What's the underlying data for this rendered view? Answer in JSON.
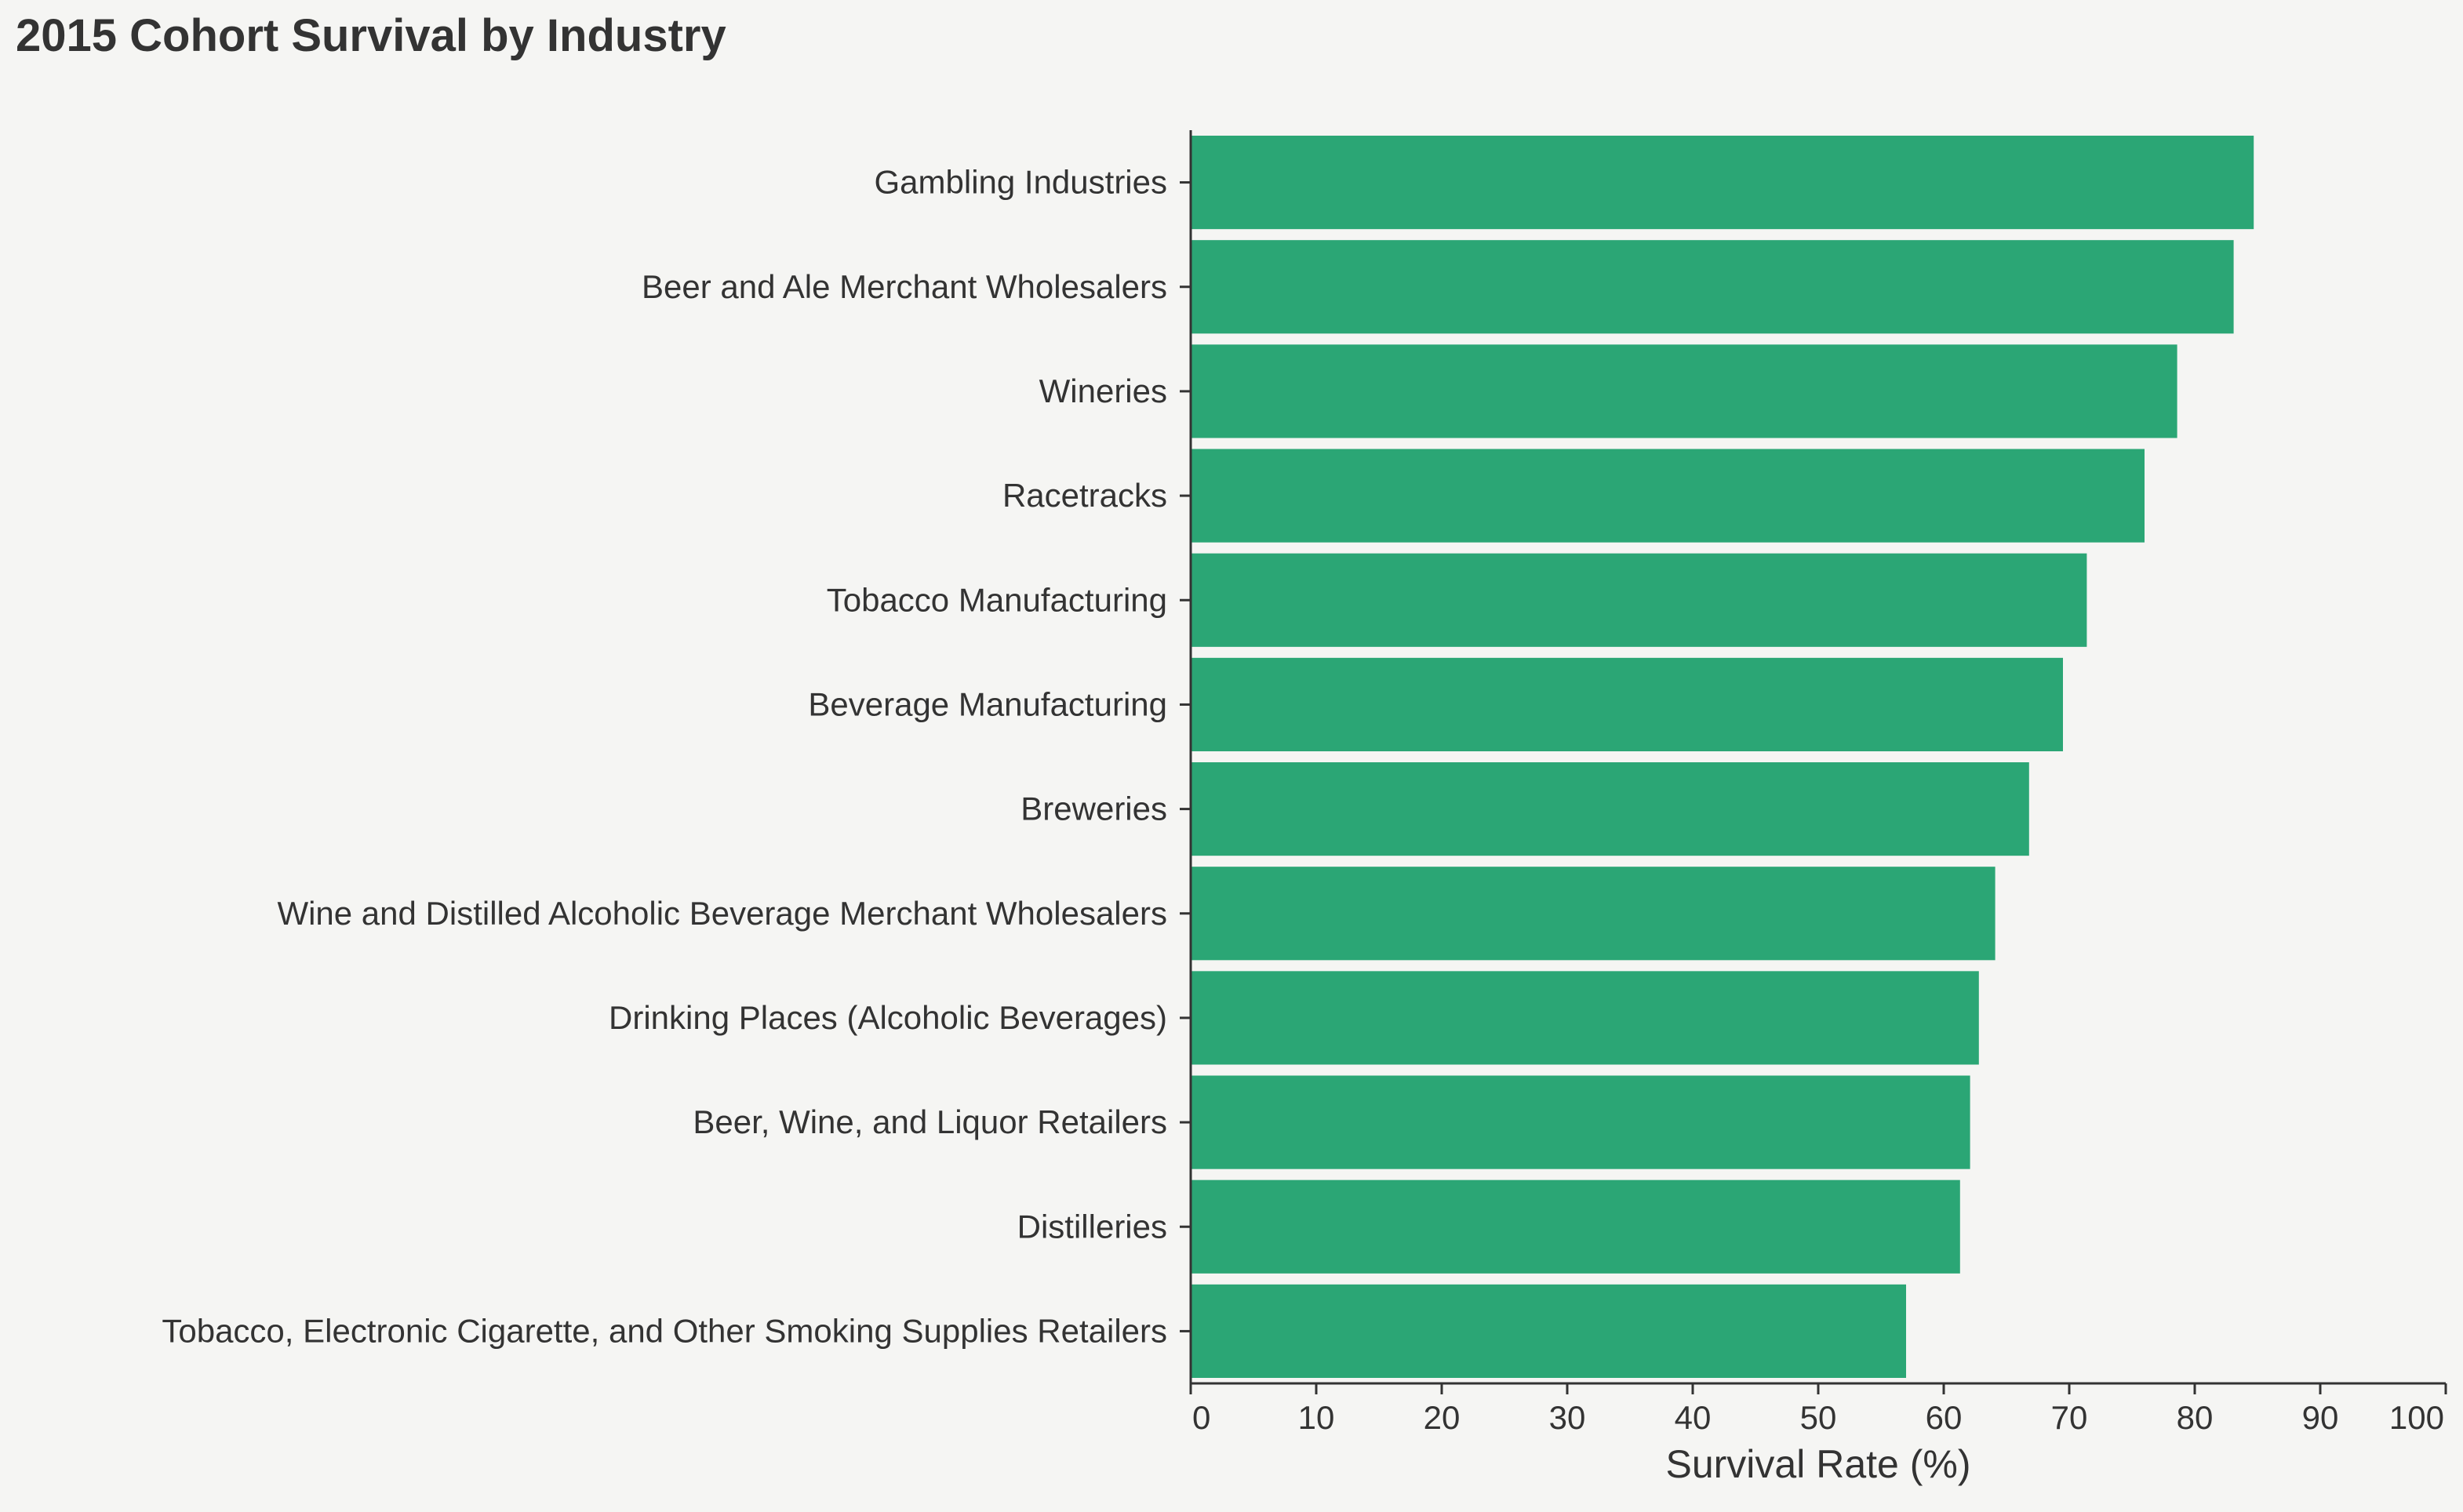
{
  "chart_data": {
    "type": "bar",
    "orientation": "horizontal",
    "title": "2015 Cohort Survival by Industry",
    "xlabel": "Survival Rate (%)",
    "ylabel": "",
    "xlim": [
      0,
      100
    ],
    "x_ticks": [
      0,
      10,
      20,
      30,
      40,
      50,
      60,
      70,
      80,
      90,
      100
    ],
    "categories": [
      "Gambling Industries",
      "Beer and Ale Merchant Wholesalers",
      "Wineries",
      "Racetracks",
      "Tobacco Manufacturing",
      "Beverage Manufacturing",
      "Breweries",
      "Wine and Distilled Alcoholic Beverage Merchant Wholesalers",
      "Drinking Places (Alcoholic Beverages)",
      "Beer, Wine, and Liquor Retailers",
      "Distilleries",
      "Tobacco, Electronic Cigarette, and Other Smoking Supplies Retailers"
    ],
    "values": [
      84.7,
      83.1,
      78.6,
      76.0,
      71.4,
      69.5,
      66.8,
      64.1,
      62.8,
      62.1,
      61.3,
      57.0
    ],
    "bar_color": "#2ba675",
    "grid": false,
    "legend": "none"
  }
}
